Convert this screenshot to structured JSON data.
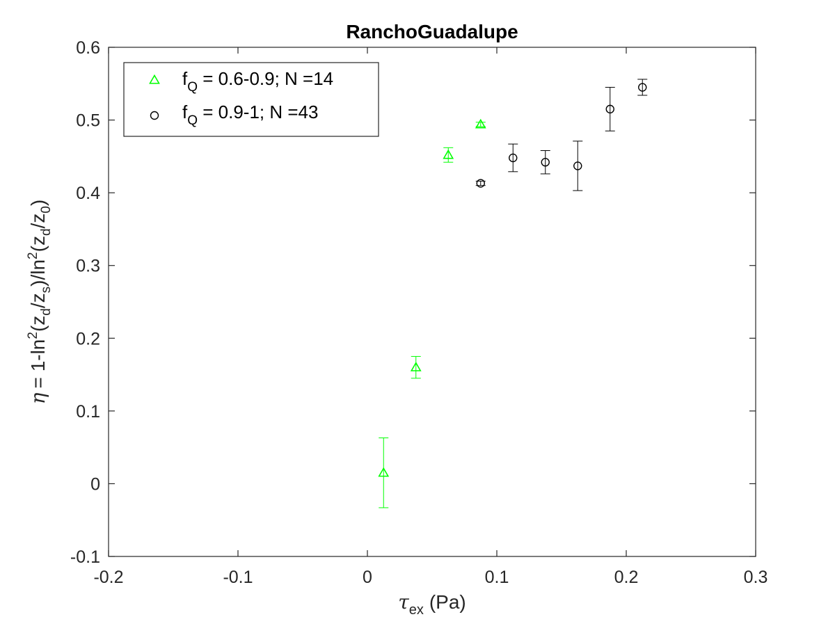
{
  "chart_data": {
    "type": "scatter",
    "title": "RanchoGuadalupe",
    "xlim": [
      -0.2,
      0.3
    ],
    "ylim": [
      -0.1,
      0.6
    ],
    "xticks": [
      "-0.2",
      "-0.1",
      "0",
      "0.1",
      "0.2",
      "0.3"
    ],
    "xtick_values": [
      -0.2,
      -0.1,
      0,
      0.1,
      0.2,
      0.3
    ],
    "yticks": [
      "-0.1",
      "0",
      "0.1",
      "0.2",
      "0.3",
      "0.4",
      "0.5",
      "0.6"
    ],
    "ytick_values": [
      -0.1,
      0,
      0.1,
      0.2,
      0.3,
      0.4,
      0.5,
      0.6
    ],
    "grid": false,
    "legend_position": "top-left",
    "xlabel": {
      "symbol": "τ",
      "symbol_sub": "ex",
      "text": "(Pa)"
    },
    "ylabel": {
      "symbol": "η",
      "p1": "= 1-ln",
      "sup1": "2",
      "p2": "(z",
      "sub1": "d",
      "p3": "/z",
      "sub2": "s",
      "p4": ")/ln",
      "sup2": "2",
      "p5": "(z",
      "sub3": "d",
      "p6": "/z",
      "sub4": "0",
      "p7": ")"
    },
    "series": [
      {
        "legend_prefix": "f",
        "legend_sub": "Q",
        "legend_text": " = 0.6-0.9; N =14",
        "marker": "triangle",
        "color": "#00ff00",
        "points": [
          {
            "x": 0.0125,
            "y": 0.015,
            "err": 0.048
          },
          {
            "x": 0.0375,
            "y": 0.16,
            "err": 0.015
          },
          {
            "x": 0.0625,
            "y": 0.452,
            "err": 0.01
          },
          {
            "x": 0.0875,
            "y": 0.494,
            "err": 0.003
          }
        ]
      },
      {
        "legend_prefix": "f",
        "legend_sub": "Q",
        "legend_text": " = 0.9-1; N =43",
        "marker": "circle",
        "color": "#000000",
        "points": [
          {
            "x": 0.0875,
            "y": 0.413,
            "err": 0.003
          },
          {
            "x": 0.1125,
            "y": 0.448,
            "err": 0.019
          },
          {
            "x": 0.1375,
            "y": 0.442,
            "err": 0.016
          },
          {
            "x": 0.1625,
            "y": 0.437,
            "err": 0.034
          },
          {
            "x": 0.1875,
            "y": 0.515,
            "err": 0.03
          },
          {
            "x": 0.2125,
            "y": 0.545,
            "err": 0.011
          }
        ]
      }
    ]
  }
}
